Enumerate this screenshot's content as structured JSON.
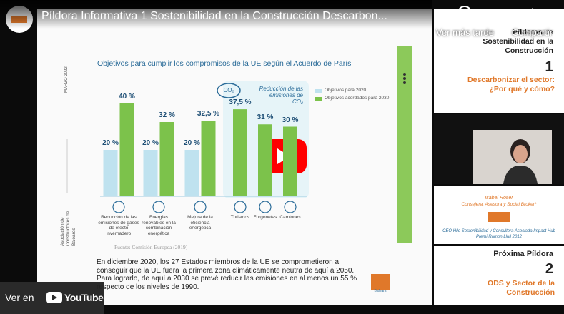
{
  "player": {
    "title": "Píldora Informativa 1 Sostenibilidad en la Construcción Descarbon...",
    "watch_later": "Ver más tarde",
    "share": "Compartir",
    "watch_on": "Ver en",
    "youtube": "YouTube"
  },
  "slide": {
    "date": "MARZO 2022",
    "org": "Asociación de Constructores de Baleares",
    "paragraph": "En diciembre 2020, los 27 Estados miembros de la UE se comprometieron a conseguir que la UE fuera la primera zona climáticamente neutra de aquí a 2050. Para lograrlo, de aquí a 2030 se prevé reducir las emisiones en al menos un 55 % respecto de los niveles de 1990.",
    "logo_text": "Balears"
  },
  "chart_data": {
    "type": "bar",
    "title": "Objetivos para cumplir los compromisos de la UE según el Acuerdo de París",
    "annotation": "Reducción de las emisiones de CO₂",
    "icon_label": "CO₂",
    "source": "Fuente: Comisión Europea (2019)",
    "categories": [
      "Reducción de las emisiones de gases de efecto invernadero",
      "Energías renovables en la combinación energética",
      "Mejora de la eficiencia energética",
      "Turismos",
      "Furgonetas",
      "Camiones"
    ],
    "series": [
      {
        "name": "Objetivos para 2020",
        "color": "#bfe2ef",
        "values": [
          20,
          20,
          20,
          null,
          null,
          null
        ],
        "value_labels": [
          "20 %",
          "20 %",
          "20 %",
          null,
          null,
          null
        ]
      },
      {
        "name": "Objetivos acordados para 2030",
        "color": "#7cc24b",
        "values": [
          40,
          32,
          32.5,
          37.5,
          31,
          30
        ],
        "value_labels": [
          "40 %",
          "32 %",
          "32,5 %",
          "37,5 %",
          "31 %",
          "30 %"
        ]
      }
    ]
  },
  "sidebar": {
    "series_title": "Píldoras de Sostenibilidad en la Construcción",
    "number": "1",
    "topic": "Descarbonizar el sector: ¿Por qué y cómo?",
    "speaker": "Isabel Roser",
    "role": "Consejera, Asesora y Social Broker*",
    "bio_1": "CEO Hilo Sostenibilidad y Consultora Asociada Impact Hub",
    "bio_2": "Premi Ramon Llull 2012",
    "next_label": "Próxima Píldora",
    "next_number": "2",
    "next_topic": "ODS y Sector de la Construcción"
  }
}
